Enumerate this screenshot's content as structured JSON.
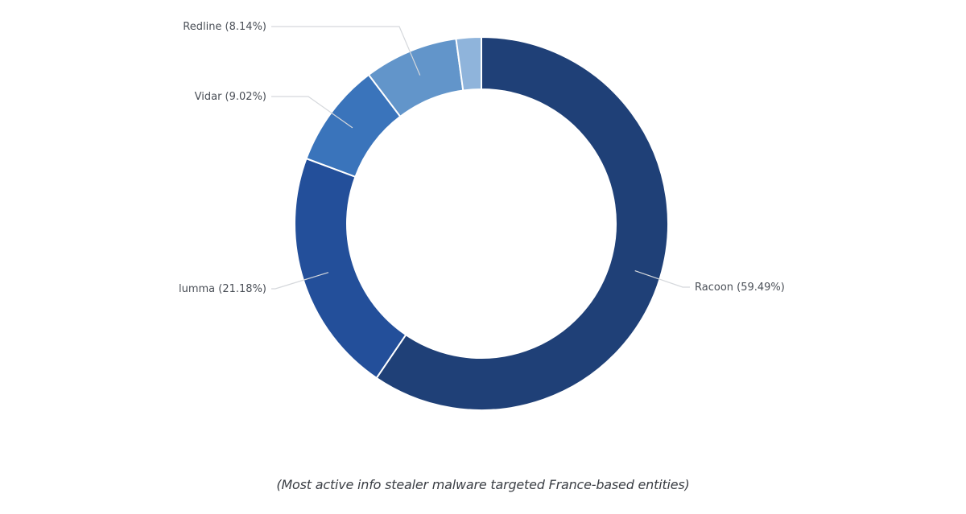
{
  "chart_data": {
    "type": "pie",
    "variant": "donut",
    "slices": [
      {
        "label": "Racoon (59.49%)",
        "value": 59.49,
        "color": "#1f4077"
      },
      {
        "label": "lumma (21.18%)",
        "value": 21.18,
        "color": "#234f9a"
      },
      {
        "label": "Vidar (9.02%)",
        "value": 9.02,
        "color": "#3a74bb"
      },
      {
        "label": "Redline (8.14%)",
        "value": 8.14,
        "color": "#6295ca"
      },
      {
        "label": "",
        "value": 2.17,
        "color": "#8fb4db"
      }
    ],
    "legend": "none"
  },
  "caption": "(Most active info stealer malware targeted France-based entities)"
}
